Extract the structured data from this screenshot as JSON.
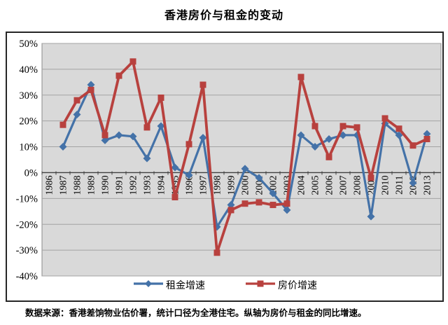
{
  "title": "香港房价与租金的变动",
  "footer": "数据来源：香港差饷物业估价署，统计口径为全港住宅。纵轴为房价与租金的同比增速。",
  "legend": {
    "items": [
      {
        "label": "租金增速"
      },
      {
        "label": "房价增速"
      }
    ]
  },
  "colors": {
    "rent_series": "#4472A8",
    "price_series": "#B8413E",
    "plot_background": "#D9D9D9",
    "gridline": "#A3A3A3",
    "axis_line": "#404040"
  },
  "chart_data": {
    "type": "line",
    "title": "香港房价与租金的变动",
    "categories": [
      "1986",
      "1987",
      "1988",
      "1989",
      "1990",
      "1991",
      "1992",
      "1993",
      "1994",
      "1995",
      "1996",
      "1997",
      "1998",
      "1999",
      "2000",
      "2001",
      "2002",
      "2003",
      "2004",
      "2005",
      "2006",
      "2007",
      "2008",
      "2009",
      "2010",
      "2011",
      "2012",
      "2013"
    ],
    "series": [
      {
        "key": "rent",
        "name": "租金增速",
        "color": "#4472A8",
        "marker": "diamond",
        "values": [
          null,
          10,
          22.5,
          34,
          12.5,
          14.5,
          14,
          5.5,
          18,
          2,
          -1,
          13.5,
          -21,
          -12.5,
          1.5,
          -2,
          -8,
          -14.5,
          14.5,
          10,
          13,
          14.5,
          14.5,
          -17,
          19,
          14.5,
          -4,
          15
        ]
      },
      {
        "key": "price",
        "name": "房价增速",
        "color": "#B8413E",
        "marker": "square",
        "values": [
          null,
          18.5,
          28,
          32,
          14.5,
          37.5,
          43,
          17.5,
          29,
          -9.5,
          11,
          34,
          -31,
          -14.5,
          -12,
          -11.5,
          -12.5,
          -12,
          37,
          18,
          6,
          18,
          17.5,
          -2,
          21,
          17,
          10.5,
          13
        ]
      }
    ],
    "ylim": [
      -40,
      50
    ],
    "y_tick_step": 10,
    "y_tick_labels": [
      "50%",
      "40%",
      "30%",
      "20%",
      "10%",
      "0%",
      "-10%",
      "-20%",
      "-30%",
      "-40%"
    ],
    "x_label_rotation": -90,
    "grid": true,
    "legend_position": "bottom",
    "xlabel": "",
    "ylabel": ""
  }
}
